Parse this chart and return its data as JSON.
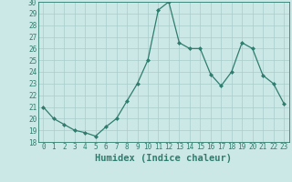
{
  "x": [
    0,
    1,
    2,
    3,
    4,
    5,
    6,
    7,
    8,
    9,
    10,
    11,
    12,
    13,
    14,
    15,
    16,
    17,
    18,
    19,
    20,
    21,
    22,
    23
  ],
  "y": [
    21.0,
    20.0,
    19.5,
    19.0,
    18.8,
    18.5,
    19.3,
    20.0,
    21.5,
    23.0,
    25.0,
    29.3,
    30.0,
    26.5,
    26.0,
    26.0,
    23.8,
    22.8,
    24.0,
    26.5,
    26.0,
    23.7,
    23.0,
    21.3
  ],
  "xlabel": "Humidex (Indice chaleur)",
  "ylim": [
    18,
    30
  ],
  "xlim_min": -0.5,
  "xlim_max": 23.5,
  "yticks": [
    18,
    19,
    20,
    21,
    22,
    23,
    24,
    25,
    26,
    27,
    28,
    29,
    30
  ],
  "xticks": [
    0,
    1,
    2,
    3,
    4,
    5,
    6,
    7,
    8,
    9,
    10,
    11,
    12,
    13,
    14,
    15,
    16,
    17,
    18,
    19,
    20,
    21,
    22,
    23
  ],
  "line_color": "#2e7d6e",
  "marker_color": "#2e7d6e",
  "bg_color": "#cce8e6",
  "grid_color": "#a8cccb",
  "tick_label_fontsize": 5.5,
  "xlabel_fontsize": 7.5
}
